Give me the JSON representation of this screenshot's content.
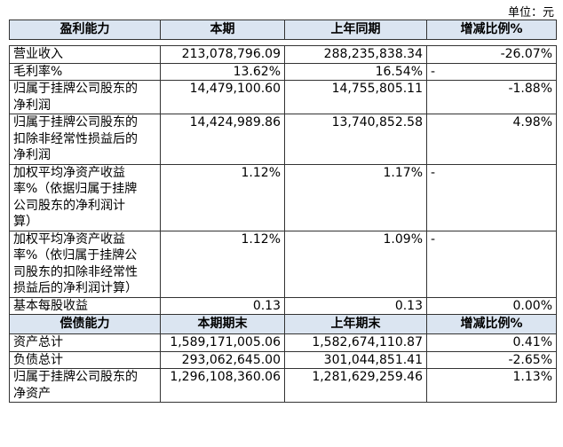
{
  "unit": "单位：元",
  "sections": [
    {
      "header": [
        "盈利能力",
        "本期",
        "上年同期",
        "增减比例%"
      ],
      "rows": [
        [
          "营业收入",
          "213,078,796.09",
          "288,235,838.34",
          "-26.07%"
        ],
        [
          "毛利率%",
          "13.62%",
          "16.54%",
          "-"
        ],
        [
          "归属于挂牌公司股东的净利润",
          "14,479,100.60",
          "14,755,805.11",
          "-1.88%"
        ],
        [
          "归属于挂牌公司股东的扣除非经常性损益后的净利润",
          "14,424,989.86",
          "13,740,852.58",
          "4.98%"
        ],
        [
          "加权平均净资产收益率%（依据归属于挂牌公司股东的净利润计算）",
          "1.12%",
          "1.17%",
          "-"
        ],
        [
          "加权平均净资产收益率%（依归属于挂牌公司股东的扣除非经常性损益后的净利润计算）",
          "1.12%",
          "1.09%",
          "-"
        ],
        [
          "基本每股收益",
          "0.13",
          "0.13",
          "0.00%"
        ]
      ]
    },
    {
      "header": [
        "偿债能力",
        "本期期末",
        "上年期末",
        "增减比例%"
      ],
      "rows": [
        [
          "资产总计",
          "1,589,171,005.06",
          "1,582,674,110.87",
          "0.41%"
        ],
        [
          "负债总计",
          "293,062,645.00",
          "301,044,851.41",
          "-2.65%"
        ],
        [
          "归属于挂牌公司股东的净资产",
          "1,296,108,360.06",
          "1,281,629,259.46",
          "1.13%"
        ]
      ]
    }
  ]
}
